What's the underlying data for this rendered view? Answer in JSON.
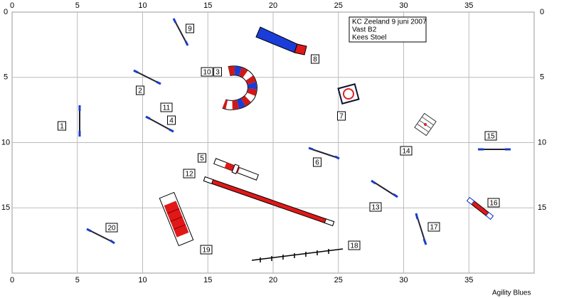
{
  "axes": {
    "x_ticks": [
      "0",
      "5",
      "10",
      "15",
      "20",
      "25",
      "30",
      "35"
    ],
    "y_ticks": [
      "0",
      "5",
      "10",
      "15"
    ]
  },
  "info": {
    "lines": [
      "KC Zeeland 9 juni 2007",
      "Vast B2",
      "Kees Stoel"
    ]
  },
  "obstacle_labels": [
    "1",
    "2",
    "3",
    "4",
    "5",
    "6",
    "7",
    "8",
    "9",
    "10",
    "11",
    "12",
    "13",
    "14",
    "15",
    "16",
    "17",
    "18",
    "19",
    "20"
  ],
  "footer": "Agility Blues"
}
